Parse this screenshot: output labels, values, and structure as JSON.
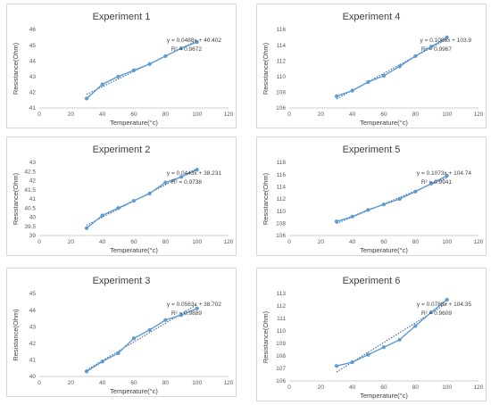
{
  "chart_data": [
    {
      "type": "scatter",
      "title": "Experiment 1",
      "xlabel": "Temperature(°c)",
      "ylabel": "Resistance(Ohm)",
      "xlim": [
        0,
        120
      ],
      "ylim": [
        41,
        46
      ],
      "xticks": [
        0,
        20,
        40,
        60,
        80,
        100,
        120
      ],
      "yticks": [
        41,
        42,
        43,
        44,
        45,
        46
      ],
      "x": [
        30,
        40,
        50,
        60,
        70,
        80,
        90,
        100
      ],
      "y": [
        41.6,
        42.5,
        43.0,
        43.4,
        43.8,
        44.3,
        44.8,
        45.2
      ],
      "trendline": {
        "slope": 0.0488,
        "intercept": 40.402
      },
      "equation": "y = 0.0488x + 40.402",
      "r2": "R² = 0.9672",
      "grid": false,
      "series_color": "#5b9bd5",
      "trend_color": "#2f5597"
    },
    {
      "type": "scatter",
      "title": "Experiment 4",
      "xlabel": "Temperature(°c)",
      "ylabel": "Resistance(Ohm)",
      "xlim": [
        0,
        120
      ],
      "ylim": [
        106,
        116
      ],
      "xticks": [
        0,
        20,
        40,
        60,
        80,
        100,
        120
      ],
      "yticks": [
        106,
        108,
        110,
        112,
        114,
        116
      ],
      "x": [
        30,
        40,
        50,
        60,
        70,
        80,
        90,
        100
      ],
      "y": [
        107.5,
        108.2,
        109.3,
        110.1,
        111.3,
        112.6,
        113.8,
        115.0
      ],
      "trendline": {
        "slope": 0.1086,
        "intercept": 103.9
      },
      "equation": "y = 0.1086x + 103.9",
      "r2": "R² = 0.9967",
      "grid": false,
      "series_color": "#5b9bd5",
      "trend_color": "#2f5597"
    },
    {
      "type": "scatter",
      "title": "Experiment 2",
      "xlabel": "Temperature(°c)",
      "ylabel": "Resistance(Ohm)",
      "xlim": [
        0,
        120
      ],
      "ylim": [
        39,
        43
      ],
      "xticks": [
        0,
        20,
        40,
        60,
        80,
        100,
        120
      ],
      "yticks": [
        39,
        39.5,
        40,
        40.5,
        41,
        41.5,
        42,
        42.5,
        43
      ],
      "x": [
        30,
        40,
        50,
        60,
        70,
        80,
        90,
        100
      ],
      "y": [
        39.4,
        40.1,
        40.5,
        40.9,
        41.3,
        41.9,
        42.2,
        42.6
      ],
      "trendline": {
        "slope": 0.0443,
        "intercept": 38.231
      },
      "equation": "y = 0.0443x + 38.231",
      "r2": "R² = 0.9738",
      "grid": false,
      "series_color": "#5b9bd5",
      "trend_color": "#2f5597"
    },
    {
      "type": "scatter",
      "title": "Experiment 5",
      "xlabel": "Temperature(°c)",
      "ylabel": "Resistance(Ohm)",
      "xlim": [
        0,
        120
      ],
      "ylim": [
        106,
        118
      ],
      "xticks": [
        0,
        20,
        40,
        60,
        80,
        100,
        120
      ],
      "yticks": [
        106,
        108,
        110,
        112,
        114,
        116,
        118
      ],
      "x": [
        30,
        40,
        50,
        60,
        70,
        80,
        90,
        100
      ],
      "y": [
        108.3,
        109.1,
        110.2,
        111.1,
        112.0,
        113.2,
        114.5,
        115.8
      ],
      "trendline": {
        "slope": 0.1073,
        "intercept": 104.74
      },
      "equation": "y = 0.1073x + 104.74",
      "r2": "R² = 0.9941",
      "grid": false,
      "series_color": "#5b9bd5",
      "trend_color": "#2f5597"
    },
    {
      "type": "scatter",
      "title": "Experiment 3",
      "xlabel": "Temperature(°c)",
      "ylabel": "Resistance(Ohm)",
      "xlim": [
        0,
        120
      ],
      "ylim": [
        40,
        45
      ],
      "xticks": [
        0,
        20,
        40,
        60,
        80,
        100,
        120
      ],
      "yticks": [
        40,
        41,
        42,
        43,
        44,
        45
      ],
      "x": [
        30,
        40,
        50,
        60,
        70,
        80,
        90,
        100
      ],
      "y": [
        40.3,
        40.9,
        41.4,
        42.3,
        42.8,
        43.4,
        43.7,
        44.1
      ],
      "trendline": {
        "slope": 0.0563,
        "intercept": 38.702
      },
      "equation": "y = 0.0563x + 38.702",
      "r2": "R² = 0.9889",
      "grid": false,
      "series_color": "#5b9bd5",
      "trend_color": "#2f5597"
    },
    {
      "type": "scatter",
      "title": "Experiment 6",
      "xlabel": "Temperature(°c)",
      "ylabel": "Resistance(Ohm)",
      "xlim": [
        0,
        120
      ],
      "ylim": [
        106,
        113
      ],
      "xticks": [
        0,
        20,
        40,
        60,
        80,
        100,
        120
      ],
      "yticks": [
        106,
        107,
        108,
        109,
        110,
        111,
        112,
        113
      ],
      "x": [
        30,
        40,
        50,
        60,
        70,
        80,
        90,
        100
      ],
      "y": [
        107.2,
        107.5,
        108.1,
        108.7,
        109.3,
        110.4,
        111.5,
        112.5
      ],
      "trendline": {
        "slope": 0.0788,
        "intercept": 104.35
      },
      "equation": "y = 0.0788x + 104.35",
      "r2": "R² = 0.9609",
      "grid": false,
      "series_color": "#5b9bd5",
      "trend_color": "#2f5597"
    }
  ]
}
